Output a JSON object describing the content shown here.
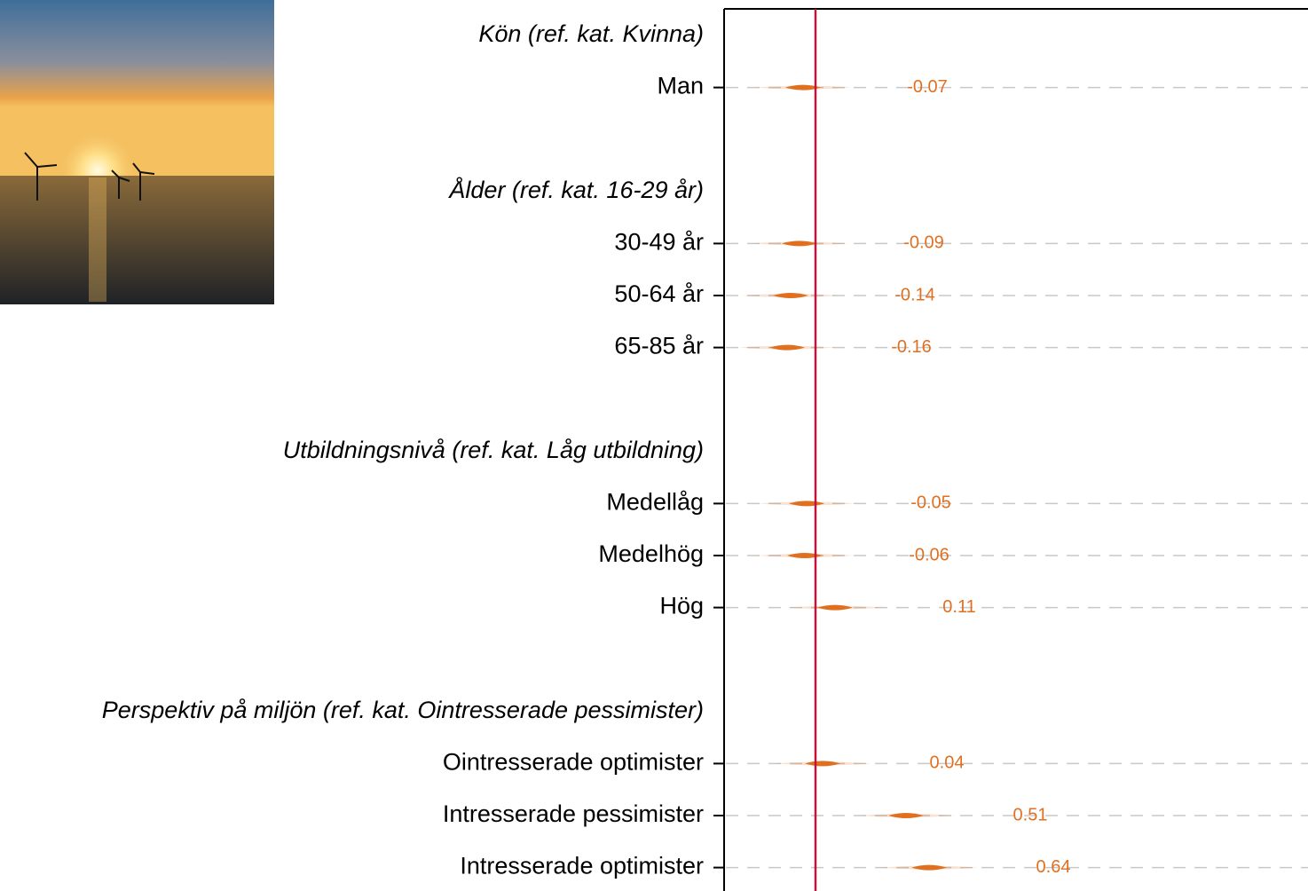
{
  "chart_data": {
    "type": "coefficient",
    "color": "#e07020",
    "xlim": [
      -0.515,
      2.775
    ],
    "groups": [
      {
        "label": "Kön (ref. kat. Kvinna)",
        "categories": [
          "Man"
        ],
        "values": [
          -0.07
        ]
      },
      {
        "label": "Ålder (ref. kat. 16-29 år)",
        "categories": [
          "30-49 år",
          "50-64 år",
          "65-85 år"
        ],
        "values": [
          -0.09,
          -0.14,
          -0.16
        ]
      },
      {
        "label": "Utbildningsnivå (ref. kat. Låg utbildning)",
        "categories": [
          "Medellåg",
          "Medelhög",
          "Hög"
        ],
        "values": [
          -0.05,
          -0.06,
          0.11
        ]
      },
      {
        "label": "Perspektiv på miljön (ref. kat. Ointresserade pessimister)",
        "categories": [
          "Ointresserade optimister",
          "Intresserade pessimister",
          "Intresserade optimister"
        ],
        "values": [
          0.04,
          0.51,
          0.64
        ]
      }
    ]
  }
}
